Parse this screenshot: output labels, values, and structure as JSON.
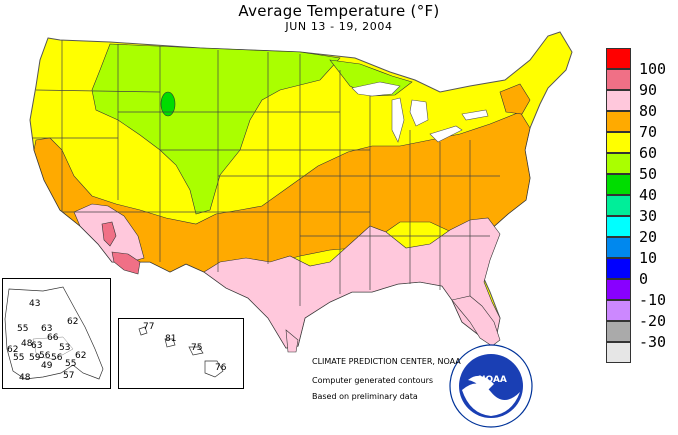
{
  "title": "Average Temperature (°F)",
  "subtitle": "JUN 13 - 19, 2004",
  "legend": [
    {
      "value": "100",
      "color": "#ff0000"
    },
    {
      "value": "90",
      "color": "#f07086"
    },
    {
      "value": "80",
      "color": "#ffc8dc"
    },
    {
      "value": "70",
      "color": "#ffaa00"
    },
    {
      "value": "60",
      "color": "#ffff00"
    },
    {
      "value": "50",
      "color": "#aaff00"
    },
    {
      "value": "40",
      "color": "#00dd00"
    },
    {
      "value": "30",
      "color": "#00ee99"
    },
    {
      "value": "20",
      "color": "#00ffff"
    },
    {
      "value": "10",
      "color": "#0088ee"
    },
    {
      "value": "0",
      "color": "#0000ff"
    },
    {
      "value": "-10",
      "color": "#8800ff"
    },
    {
      "value": "-20",
      "color": "#cc88ff"
    },
    {
      "value": "-30",
      "color": "#aaaaaa"
    },
    {
      "value": "",
      "color": "#e6e6e6"
    }
  ],
  "alaska_values": [
    "43",
    "55",
    "63",
    "62",
    "66",
    "48",
    "62",
    "63",
    "53",
    "59",
    "56",
    "55",
    "62",
    "49",
    "56",
    "55",
    "57",
    "48"
  ],
  "hawaii_values": [
    "77",
    "81",
    "75",
    "76"
  ],
  "credit": {
    "line1": "CLIMATE PREDICTION CENTER, NOAA",
    "line2": "Computer generated contours",
    "line3": "Based on preliminary data"
  },
  "noaa_logo": "NOAA"
}
